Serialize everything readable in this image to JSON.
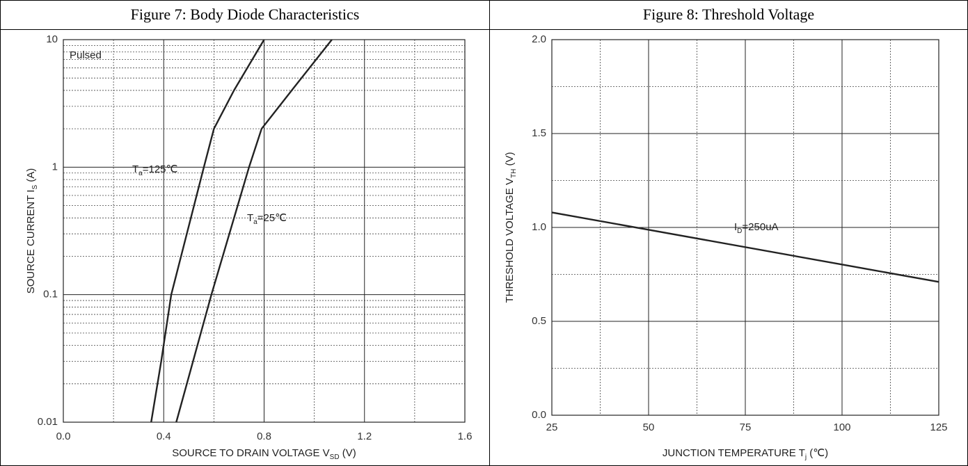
{
  "chart_data": [
    {
      "type": "line",
      "title": "Figure 7: Body Diode Characteristics",
      "x_label": {
        "base": "SOURCE TO DRAIN VOLTAGE V",
        "sub": "SD",
        "tail": " (V)"
      },
      "y_label": {
        "base": "SOURCE CURRENT I",
        "sub": "S",
        "tail": " (A)"
      },
      "xlim": [
        0,
        1.6
      ],
      "xticks": [
        {
          "value": 0,
          "label": "0.0"
        },
        0.4,
        0.8,
        1.2,
        1.6
      ],
      "ylim": [
        0.01,
        10
      ],
      "yticks": [
        0.01,
        0.1,
        1,
        10
      ],
      "y_scale": "log",
      "grid": true,
      "annotations": [
        {
          "text": "Pulsed"
        },
        {
          "base": "T",
          "sub": "a",
          "tail": "=125℃"
        },
        {
          "base": "T",
          "sub": "a",
          "tail": "=25℃"
        }
      ],
      "series": [
        {
          "color": "#222222",
          "x": [
            0.35,
            0.39,
            0.43,
            0.56,
            0.6,
            0.68,
            0.8
          ],
          "values": [
            0.01,
            0.03,
            0.1,
            1,
            2,
            4,
            10
          ]
        },
        {
          "color": "#222222",
          "x": [
            0.45,
            0.59,
            0.74,
            0.79,
            0.91,
            1.07
          ],
          "values": [
            0.01,
            0.1,
            1,
            2,
            4,
            10
          ]
        }
      ]
    },
    {
      "type": "line",
      "title": "Figure 8: Threshold Voltage",
      "x_label": {
        "base": "JUNCTION TEMPERATURE T",
        "sub": "j",
        "tail": " (℃)"
      },
      "y_label": {
        "base": "THRESHOLD VOLTAGE V",
        "sub": "TH",
        "tail": " (V)"
      },
      "xlim": [
        25,
        125
      ],
      "xticks": [
        25,
        50,
        75,
        100,
        125
      ],
      "ylim": [
        0,
        2
      ],
      "yticks": [
        {
          "value": 0,
          "label": "0.0"
        },
        0.5,
        {
          "value": 1,
          "label": "1.0"
        },
        1.5,
        {
          "value": 2,
          "label": "2.0"
        }
      ],
      "grid": true,
      "annotations": [
        {
          "base": "I",
          "sub": "D",
          "tail": "=250uA"
        }
      ],
      "series": [
        {
          "color": "#222222",
          "x": [
            25,
            125
          ],
          "values": [
            1.08,
            0.71
          ]
        }
      ]
    }
  ]
}
